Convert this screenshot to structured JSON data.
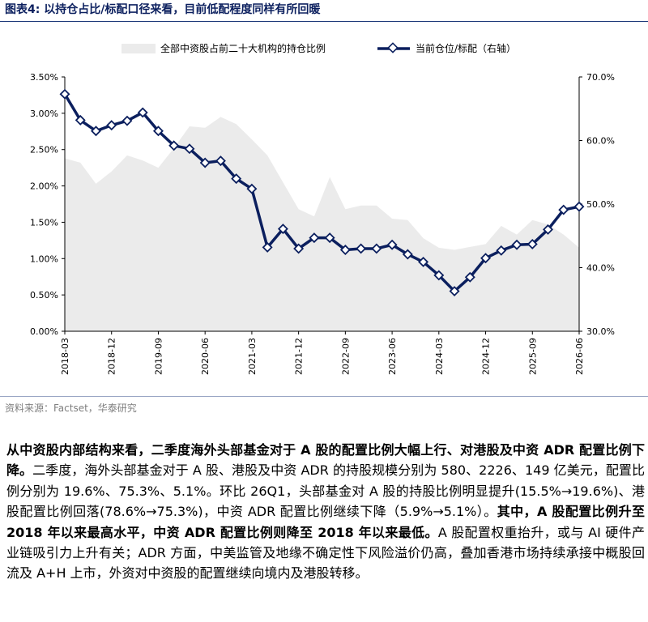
{
  "figure": {
    "title": "图表4:  以持仓占比/标配口径来看，目前低配程度同样有所回暖",
    "source": "资料来源：Factset，华泰研究"
  },
  "paragraph": [
    {
      "text": "从中资股内部结构来看，二季度海外头部基金对于 A 股的配置比例大幅上行、对港股及中资 ADR 配置比例下降。",
      "bold": true
    },
    {
      "text": "二季度，海外头部基金对于 A 股、港股及中资 ADR 的持股规模分别为 580、2226、149 亿美元，配置比例分别为 19.6%、75.3%、5.1%。环比 26Q1，头部基金对 A 股的持股比例明显提升(15.5%→19.6%)、港股配置比例回落(78.6%→75.3%)，中资 ADR 配置比例继续下降（5.9%→5.1%）。",
      "bold": false
    },
    {
      "text": "其中，A 股配置比例升至 2018 年以来最高水平，中资 ADR 配置比例则降至 2018 年以来最低。",
      "bold": true
    },
    {
      "text": "A 股配置权重抬升，或与 AI 硬件产业链吸引力上升有关；ADR 方面，中美监管及地缘不确定性下风险溢价仍高，叠加香港市场持续承接中概股回流及 A+H 上市，外资对中资股的配置继续向境内及港股转移。",
      "bold": false
    }
  ],
  "colors": {
    "area_fill": "#ebebeb",
    "line": "#0b1f5e",
    "marker_fill": "#ffffff",
    "axis": "#000000"
  },
  "chart_data": {
    "type": "line",
    "x": [
      "2018-03",
      "2018-06",
      "2018-09",
      "2018-12",
      "2019-03",
      "2019-06",
      "2019-09",
      "2019-12",
      "2020-03",
      "2020-06",
      "2020-09",
      "2020-12",
      "2021-03",
      "2021-06",
      "2021-09",
      "2021-12",
      "2022-03",
      "2022-06",
      "2022-09",
      "2022-12",
      "2023-03",
      "2023-06",
      "2023-09",
      "2023-12",
      "2024-03",
      "2024-06",
      "2024-09",
      "2024-12",
      "2025-03",
      "2025-06",
      "2025-09",
      "2025-12",
      "2026-03",
      "2026-06"
    ],
    "x_tick_labels": [
      "2018-03",
      "2018-12",
      "2019-09",
      "2020-06",
      "2021-03",
      "2021-12",
      "2022-09",
      "2023-06",
      "2024-03",
      "2024-12",
      "2025-09",
      "2026-06"
    ],
    "series": [
      {
        "name": "全部中资股占前二十大机构的持仓比例",
        "type": "area",
        "axis": "left",
        "values": [
          2.38,
          2.32,
          2.03,
          2.2,
          2.42,
          2.35,
          2.25,
          2.52,
          2.82,
          2.8,
          2.95,
          2.85,
          2.64,
          2.42,
          2.05,
          1.68,
          1.58,
          2.12,
          1.68,
          1.73,
          1.73,
          1.55,
          1.53,
          1.28,
          1.15,
          1.12,
          1.16,
          1.2,
          1.45,
          1.33,
          1.53,
          1.47,
          1.33,
          1.15
        ]
      },
      {
        "name": "当前仓位/标配（右轴）",
        "type": "line",
        "axis": "right",
        "values": [
          67.3,
          63.2,
          61.5,
          62.4,
          63.1,
          64.4,
          61.5,
          59.2,
          58.7,
          56.5,
          56.8,
          54.0,
          52.4,
          43.2,
          46.1,
          43.0,
          44.7,
          44.7,
          42.8,
          43.0,
          43.0,
          43.6,
          42.1,
          40.9,
          38.8,
          36.3,
          38.5,
          41.5,
          42.7,
          43.6,
          43.7,
          46.0,
          49.1,
          49.6
        ]
      }
    ],
    "y_left": {
      "min": 0,
      "max": 3.5,
      "ticks": [
        "0.00%",
        "0.50%",
        "1.00%",
        "1.50%",
        "2.00%",
        "2.50%",
        "3.00%",
        "3.50%"
      ]
    },
    "y_right": {
      "min": 30,
      "max": 70,
      "ticks": [
        "30.0%",
        "40.0%",
        "50.0%",
        "60.0%",
        "70.0%"
      ]
    },
    "legend_position": "top",
    "grid": false
  }
}
